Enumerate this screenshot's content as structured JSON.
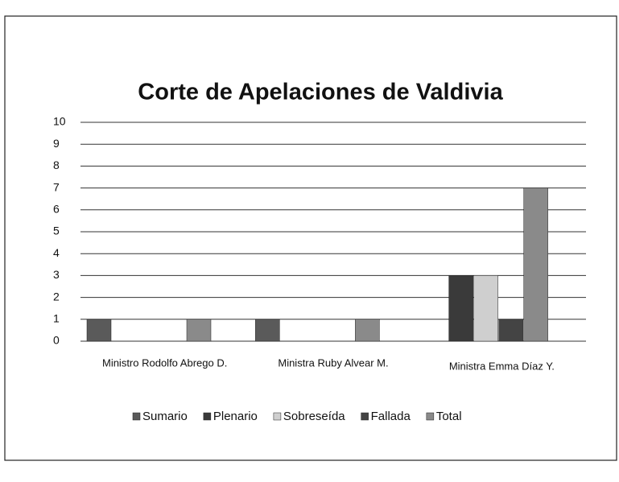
{
  "chart_data": {
    "type": "bar",
    "title": "Corte de Apelaciones de Valdivia",
    "categories": [
      "Ministro Rodolfo Abrego D.",
      "Ministra Ruby Alvear M.",
      "Ministra Emma Díaz Y."
    ],
    "series": [
      {
        "name": "Sumario",
        "color": "#5a5a5a",
        "values": [
          1,
          1,
          0
        ]
      },
      {
        "name": "Plenario",
        "color": "#3a3a3a",
        "values": [
          0,
          0,
          3
        ]
      },
      {
        "name": "Sobreseída",
        "color": "#cfcfcf",
        "values": [
          0,
          0,
          3
        ]
      },
      {
        "name": "Fallada",
        "color": "#444444",
        "values": [
          0,
          0,
          1
        ]
      },
      {
        "name": "Total",
        "color": "#8a8a8a",
        "values": [
          1,
          1,
          7
        ]
      }
    ],
    "ylim": [
      0,
      10
    ],
    "yticks": [
      0,
      1,
      2,
      3,
      4,
      5,
      6,
      7,
      8,
      9,
      10
    ],
    "grid": true,
    "legend": "bottom"
  }
}
